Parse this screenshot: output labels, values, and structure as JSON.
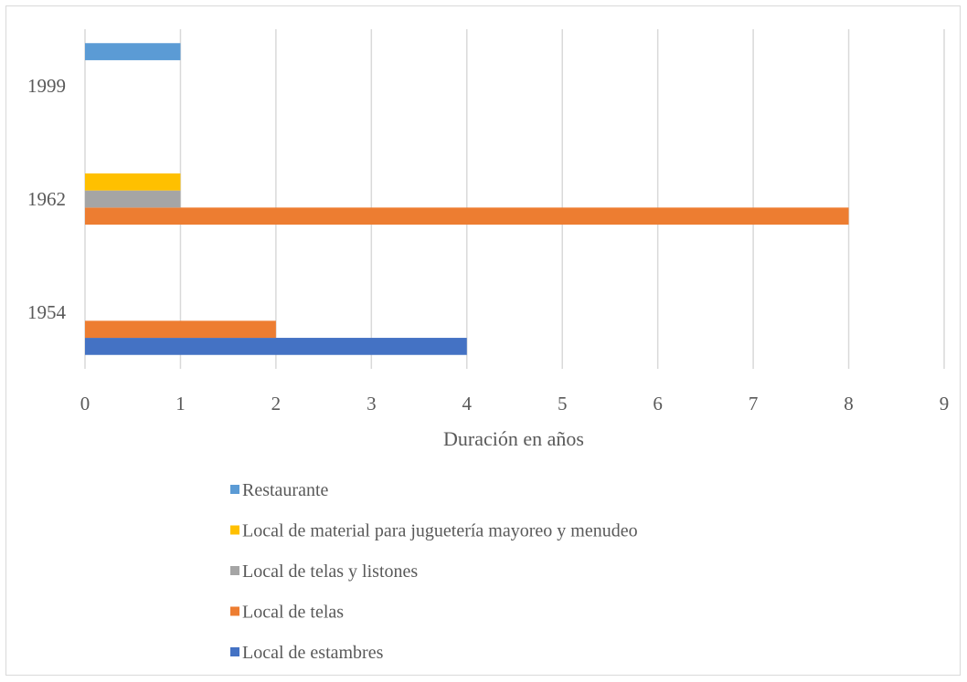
{
  "chart_data": {
    "type": "bar",
    "orientation": "horizontal",
    "title": "",
    "xlabel": "Duración en años",
    "ylabel": "",
    "xlim": [
      0,
      9
    ],
    "x_ticks": [
      "0",
      "1",
      "2",
      "3",
      "4",
      "5",
      "6",
      "7",
      "8",
      "9"
    ],
    "categories": [
      "1954",
      "1962",
      "1999"
    ],
    "grid": "vertical",
    "legend_position": "bottom",
    "series": [
      {
        "name": "Local de estambres",
        "color": "#4472C4",
        "values": [
          4,
          null,
          null
        ]
      },
      {
        "name": "Local de telas",
        "color": "#ED7D31",
        "values": [
          2,
          8,
          null
        ]
      },
      {
        "name": "Local de telas y listones",
        "color": "#A5A5A5",
        "values": [
          null,
          1,
          null
        ]
      },
      {
        "name": "Local de material para juguetería mayoreo y menudeo",
        "color": "#FFC000",
        "values": [
          null,
          1,
          null
        ]
      },
      {
        "name": "Restaurante",
        "color": "#5B9BD5",
        "values": [
          null,
          null,
          1
        ]
      }
    ]
  }
}
